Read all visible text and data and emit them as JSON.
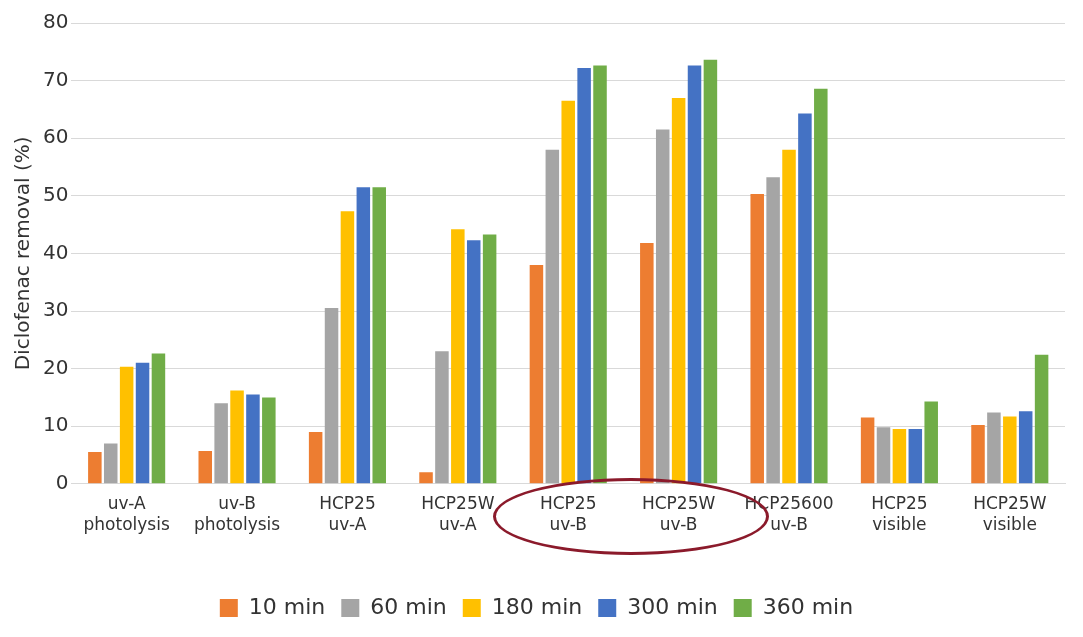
{
  "chart_data": {
    "type": "bar",
    "ylabel": "Diclofenac removal (%)",
    "categories": [
      "uv-A photolysis",
      "uv-B photolysis",
      "HCP25 uv-A",
      "HCP25W uv-A",
      "HCP25 uv-B",
      "HCP25W uv-B",
      "HCP25600 uv-B",
      "HCP25 visible",
      "HCP25W visible"
    ],
    "series": [
      {
        "name": "10 min",
        "color": "#ed7d31",
        "values": [
          5.5,
          5.7,
          9,
          2,
          38,
          41.8,
          50.3,
          11.5,
          10.2
        ]
      },
      {
        "name": "60 min",
        "color": "#a5a5a5",
        "values": [
          7,
          14,
          30.5,
          23,
          58,
          61.5,
          53.2,
          9.8,
          12.4
        ]
      },
      {
        "name": "180 min",
        "color": "#ffc000",
        "values": [
          20.3,
          16.2,
          47.3,
          44.2,
          66.5,
          67,
          58,
          9.5,
          11.7
        ]
      },
      {
        "name": "300 min",
        "color": "#4472c4",
        "values": [
          21,
          15.5,
          51.5,
          42.3,
          72.2,
          72.6,
          64.3,
          9.5,
          12.6
        ]
      },
      {
        "name": "360 min",
        "color": "#70ad47",
        "values": [
          22.6,
          15,
          51.5,
          43.3,
          72.6,
          73.6,
          68.6,
          14.3,
          22.4
        ]
      }
    ],
    "ylim": [
      0,
      80
    ],
    "yticks": [
      0,
      10,
      20,
      30,
      40,
      50,
      60,
      70,
      80
    ],
    "grid": "y",
    "legend": "bottom"
  }
}
